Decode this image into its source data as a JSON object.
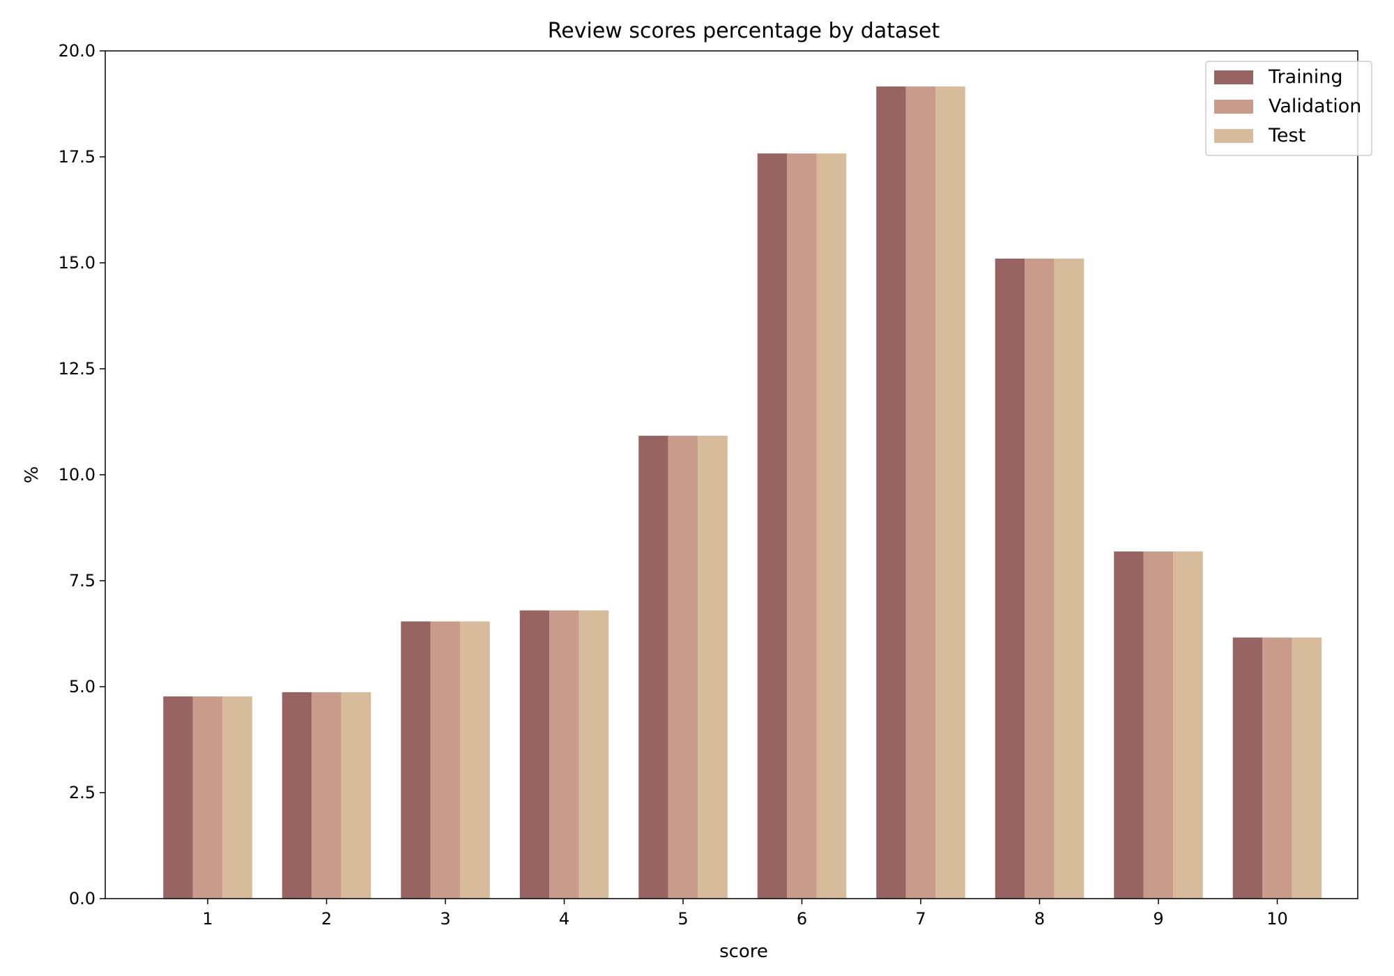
{
  "chart_data": {
    "type": "bar",
    "title": "Review scores percentage by dataset",
    "xlabel": "score",
    "ylabel": "%",
    "categories": [
      "1",
      "2",
      "3",
      "4",
      "5",
      "6",
      "7",
      "8",
      "9",
      "10"
    ],
    "ylim": [
      0,
      20
    ],
    "yticks": [
      0.0,
      2.5,
      5.0,
      7.5,
      10.0,
      12.5,
      15.0,
      17.5,
      20.0
    ],
    "ytick_labels": [
      "0.0",
      "2.5",
      "5.0",
      "7.5",
      "10.0",
      "12.5",
      "15.0",
      "17.5",
      "20.0"
    ],
    "grid": false,
    "legend_position": "top-right",
    "series": [
      {
        "name": "Training",
        "color": "#986461",
        "values": [
          4.77,
          4.87,
          6.54,
          6.8,
          10.92,
          17.58,
          19.16,
          15.1,
          8.19,
          6.16
        ]
      },
      {
        "name": "Validation",
        "color": "#c99b8a",
        "values": [
          4.77,
          4.87,
          6.54,
          6.8,
          10.92,
          17.58,
          19.16,
          15.1,
          8.19,
          6.16
        ]
      },
      {
        "name": "Test",
        "color": "#d6bc9a",
        "values": [
          4.77,
          4.87,
          6.54,
          6.8,
          10.92,
          17.58,
          19.16,
          15.1,
          8.19,
          6.16
        ]
      }
    ]
  }
}
